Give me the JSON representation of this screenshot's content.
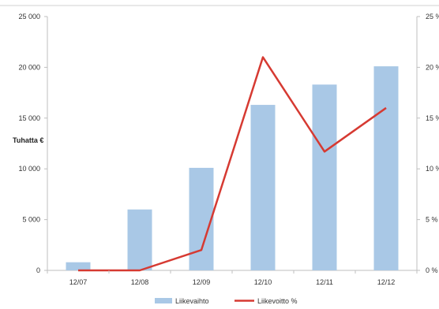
{
  "chart_data": {
    "type": "bar",
    "categories": [
      "12/07",
      "12/08",
      "12/09",
      "12/10",
      "12/11",
      "12/12"
    ],
    "series": [
      {
        "name": "Liikevaihto",
        "kind": "bar",
        "axis": "left",
        "color": "#a9c8e6",
        "values": [
          800,
          6000,
          10100,
          16300,
          18300,
          20100
        ]
      },
      {
        "name": "Liikevoitto %",
        "kind": "line",
        "axis": "right",
        "color": "#d63a32",
        "values": [
          0,
          0,
          2,
          21,
          11.7,
          16
        ]
      }
    ],
    "ylabel": "Tuhatta €",
    "y_left": {
      "lim": [
        0,
        25000
      ],
      "ticks": [
        "0",
        "5 000",
        "10 000",
        "15 000",
        "20 000",
        "25 000"
      ],
      "tick_values": [
        0,
        5000,
        10000,
        15000,
        20000,
        25000
      ]
    },
    "y_right": {
      "lim": [
        0,
        25
      ],
      "ticks": [
        "0 %",
        "5 %",
        "10 %",
        "15 %",
        "20 %",
        "25 %"
      ],
      "tick_values": [
        0,
        5,
        10,
        15,
        20,
        25
      ]
    },
    "legend": {
      "position": "bottom",
      "entries": [
        "Liikevaihto",
        "Liikevoitto %"
      ]
    },
    "grid": false
  }
}
